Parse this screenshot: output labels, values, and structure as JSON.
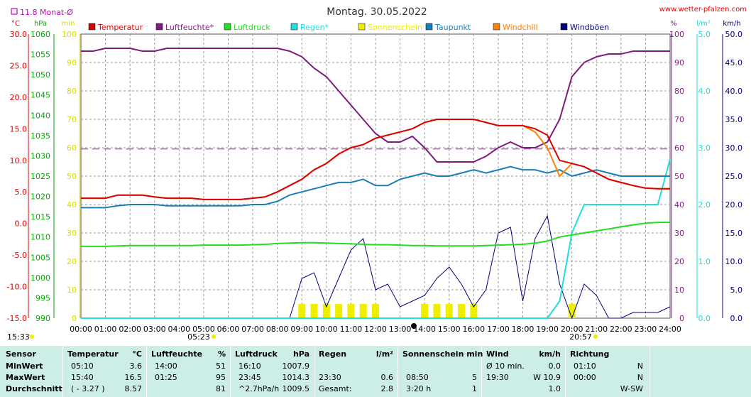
{
  "header": {
    "title": "Montag. 30.05.2022",
    "site": "www.wetter-pfalzen.com",
    "monat_label": "11.8 Monat-Ø",
    "sunrise_label": "05:23",
    "sunset_label": "20:57",
    "time_label": "15:33"
  },
  "colors": {
    "temperatur": "#dd0000",
    "luftfeuchte": "#7f1a7f",
    "luftdruck": "#22dd22",
    "regen": "#22dddd",
    "sonnenschein": "#eeee00",
    "taupunkt": "#1a7fb5",
    "windchill": "#ff7f00",
    "windboeen": "#00007f",
    "grid": "#999999",
    "stats_bg": "#cdeee6"
  },
  "chart_data": {
    "type": "line",
    "x": [
      "00:00",
      "00:30",
      "01:00",
      "01:30",
      "02:00",
      "02:30",
      "03:00",
      "03:30",
      "04:00",
      "04:30",
      "05:00",
      "05:30",
      "06:00",
      "06:30",
      "07:00",
      "07:30",
      "08:00",
      "08:30",
      "09:00",
      "09:30",
      "10:00",
      "10:30",
      "11:00",
      "11:30",
      "12:00",
      "12:30",
      "13:00",
      "13:30",
      "14:00",
      "14:30",
      "15:00",
      "15:30",
      "16:00",
      "16:30",
      "17:00",
      "17:30",
      "18:00",
      "18:30",
      "19:00",
      "19:30",
      "20:00",
      "20:30",
      "21:00",
      "21:30",
      "22:00",
      "22:30",
      "23:00",
      "23:30",
      "24:00"
    ],
    "x_ticks": [
      "00:00",
      "01:00",
      "02:00",
      "03:00",
      "04:00",
      "05:00",
      "06:00",
      "07:00",
      "08:00",
      "09:00",
      "10:00",
      "11:00",
      "12:00",
      "13:00",
      "14:00",
      "15:00",
      "16:00",
      "17:00",
      "18:00",
      "19:00",
      "20:00",
      "21:00",
      "22:00",
      "23:00",
      "24:00"
    ],
    "axes": {
      "temp": {
        "label": "°C",
        "range": [
          -15,
          30
        ],
        "ticks": [
          "30.0",
          "25.0",
          "20.0",
          "15.0",
          "10.0",
          "5.0",
          "0.0",
          "-5.0",
          "-10.0",
          "-15.0"
        ]
      },
      "pressure": {
        "label": "hPa",
        "range": [
          990,
          1060
        ],
        "ticks": [
          "1060",
          "1055",
          "1050",
          "1045",
          "1040",
          "1035",
          "1030",
          "1025",
          "1020",
          "1015",
          "1010",
          "1005",
          "1000",
          "995",
          "990"
        ]
      },
      "sun": {
        "label": "min",
        "range": [
          0,
          100
        ],
        "ticks": [
          "100",
          "90",
          "80",
          "70",
          "60",
          "50",
          "40",
          "30",
          "20",
          "10",
          "0"
        ]
      },
      "humidity": {
        "label": "%",
        "range": [
          0,
          100
        ],
        "ticks": [
          "100",
          "90",
          "80",
          "70",
          "60",
          "50",
          "40",
          "30",
          "20",
          "10",
          "0"
        ]
      },
      "rain": {
        "label": "l/m²",
        "range": [
          0,
          5
        ],
        "ticks": [
          "5.0",
          "4.0",
          "3.0",
          "2.0",
          "1.0",
          "0.0"
        ]
      },
      "wind": {
        "label": "km/h",
        "range": [
          0,
          50
        ],
        "ticks": [
          "50.0",
          "45.0",
          "40.0",
          "35.0",
          "30.0",
          "25.0",
          "20.0",
          "15.0",
          "10.0",
          "5.0",
          "0.0"
        ]
      }
    },
    "monthly_avg_temp": 11.8,
    "series": [
      {
        "name": "Temperatur",
        "axis": "temp",
        "values": [
          4.0,
          4.0,
          4.0,
          4.5,
          4.5,
          4.5,
          4.2,
          4.0,
          4.0,
          4.0,
          3.8,
          3.8,
          3.8,
          3.8,
          4.0,
          4.2,
          5.0,
          6.0,
          7.0,
          8.5,
          9.5,
          11.0,
          12.0,
          12.5,
          13.5,
          14.0,
          14.5,
          15.0,
          16.0,
          16.5,
          16.5,
          16.5,
          16.5,
          16.0,
          15.5,
          15.5,
          15.5,
          15.0,
          14.0,
          10.0,
          9.5,
          9.0,
          8.0,
          7.0,
          6.5,
          6.0,
          5.6,
          5.5,
          5.5
        ]
      },
      {
        "name": "Luftfeuchte*",
        "axis": "humidity",
        "values": [
          94,
          94,
          95,
          95,
          95,
          94,
          94,
          95,
          95,
          95,
          95,
          95,
          95,
          95,
          95,
          95,
          95,
          94,
          92,
          88,
          85,
          80,
          75,
          70,
          65,
          62,
          62,
          64,
          60,
          55,
          55,
          55,
          55,
          57,
          60,
          62,
          60,
          60,
          62,
          70,
          85,
          90,
          92,
          93,
          93,
          94,
          94,
          94,
          94
        ]
      },
      {
        "name": "Luftdruck",
        "axis": "pressure",
        "values": [
          1007.7,
          1007.7,
          1007.7,
          1007.8,
          1007.9,
          1007.9,
          1007.9,
          1007.9,
          1007.9,
          1007.9,
          1008.0,
          1008.0,
          1008.0,
          1008.0,
          1008.1,
          1008.2,
          1008.4,
          1008.5,
          1008.6,
          1008.6,
          1008.5,
          1008.4,
          1008.3,
          1008.2,
          1008.1,
          1008.1,
          1008.0,
          1007.9,
          1007.9,
          1007.8,
          1007.8,
          1007.8,
          1007.8,
          1007.9,
          1008.0,
          1008.1,
          1008.2,
          1008.5,
          1009.0,
          1010.0,
          1010.5,
          1011.0,
          1011.5,
          1012.0,
          1012.5,
          1013.0,
          1013.4,
          1013.6,
          1013.6
        ]
      },
      {
        "name": "Regen*",
        "axis": "rain",
        "values": [
          0,
          0,
          0,
          0,
          0,
          0,
          0,
          0,
          0,
          0,
          0,
          0,
          0,
          0,
          0,
          0,
          0,
          0,
          0,
          0,
          0,
          0,
          0,
          0,
          0,
          0,
          0,
          0,
          0,
          0,
          0,
          0,
          0,
          0,
          0,
          0,
          0,
          0,
          0,
          0.3,
          1.5,
          2.0,
          2.0,
          2.0,
          2.0,
          2.0,
          2.0,
          2.0,
          2.8
        ]
      },
      {
        "name": "Sonnenschein",
        "axis": "sun",
        "values": [
          0,
          0,
          0,
          0,
          0,
          0,
          0,
          0,
          0,
          0,
          0,
          0,
          0,
          0,
          0,
          0,
          0,
          0,
          5,
          5,
          5,
          5,
          5,
          5,
          5,
          0,
          0,
          0,
          5,
          5,
          5,
          5,
          5,
          0,
          0,
          0,
          0,
          0,
          0,
          0,
          5,
          0,
          0,
          0,
          0,
          0,
          0,
          0,
          0
        ]
      },
      {
        "name": "Taupunkt",
        "axis": "temp",
        "values": [
          2.5,
          2.5,
          2.5,
          2.8,
          3.0,
          3.0,
          3.0,
          2.8,
          2.8,
          2.8,
          2.8,
          2.8,
          2.8,
          2.8,
          3.0,
          3.0,
          3.5,
          4.5,
          5.0,
          5.5,
          6.0,
          6.5,
          6.5,
          7.0,
          6.0,
          6.0,
          7.0,
          7.5,
          8.0,
          7.5,
          7.5,
          8.0,
          8.5,
          8.0,
          8.5,
          9.0,
          8.5,
          8.5,
          8.0,
          8.5,
          7.5,
          8.0,
          8.5,
          8.0,
          7.5,
          7.5,
          7.5,
          7.5,
          7.5
        ]
      },
      {
        "name": "Windchill",
        "axis": "temp",
        "values": [
          4.0,
          4.0,
          4.0,
          4.5,
          4.5,
          4.5,
          4.2,
          4.0,
          4.0,
          4.0,
          3.8,
          3.8,
          3.8,
          3.8,
          4.0,
          4.2,
          5.0,
          6.0,
          7.0,
          8.5,
          9.5,
          11.0,
          12.0,
          12.5,
          13.5,
          14.0,
          14.5,
          15.0,
          16.0,
          16.5,
          16.5,
          16.5,
          16.5,
          16.0,
          15.5,
          15.5,
          15.5,
          14.5,
          12.0,
          7.5,
          9.5,
          9.0,
          8.0,
          7.0,
          6.5,
          6.0,
          5.6,
          5.5,
          5.5
        ]
      },
      {
        "name": "Windböen",
        "axis": "wind",
        "values": [
          0,
          0,
          0,
          0,
          0,
          0,
          0,
          0,
          0,
          0,
          0,
          0,
          0,
          0,
          0,
          0,
          0,
          0,
          7,
          8,
          2,
          7,
          12,
          14,
          5,
          6,
          2,
          3,
          4,
          7,
          9,
          6,
          2,
          5,
          15,
          16,
          3,
          14,
          18,
          6,
          0,
          6,
          4,
          0,
          0,
          1,
          1,
          1,
          2
        ]
      }
    ]
  },
  "stats": {
    "headers": {
      "sensor": "Sensor",
      "temp": "Temperatur",
      "temp_unit": "°C",
      "hum": "Luftfeuchte",
      "hum_unit": "%",
      "press": "Luftdruck",
      "press_unit": "hPa",
      "rain": "Regen",
      "rain_unit": "l/m²",
      "sun": "Sonnenschein min",
      "wind": "Wind",
      "wind_unit": "km/h",
      "dir": "Richtung"
    },
    "rows": [
      {
        "label": "MinWert",
        "temp_time": "05:10",
        "temp_val": "3.6",
        "hum_time": "14:00",
        "hum_val": "51",
        "press_time": "16:10",
        "press_val": "1007.9",
        "rain_time": "",
        "rain_val": "",
        "sun_time": "",
        "sun_val": "",
        "wind_time": "Ø 10 min.",
        "wind_val": "0.0",
        "dir_time": "01:10",
        "dir_val": "N"
      },
      {
        "label": "MaxWert",
        "temp_time": "15:40",
        "temp_val": "16.5",
        "hum_time": "01:25",
        "hum_val": "95",
        "press_time": "23:45",
        "press_val": "1014.3",
        "rain_time": "23:30",
        "rain_val": "0.6",
        "sun_time": "08:50",
        "sun_val": "5",
        "wind_time": "19:30",
        "wind_val": "W 10.9",
        "dir_time": "00:00",
        "dir_val": "N"
      },
      {
        "label": "Durchschnitt",
        "temp_time": "( - 3.27 )",
        "temp_val": "8.57",
        "hum_time": "",
        "hum_val": "81",
        "press_time": "^2.7hPa/h",
        "press_val": "1009.5",
        "rain_time": "Gesamt:",
        "rain_val": "2.8",
        "sun_time": "3:20 h",
        "sun_val": "1",
        "wind_time": "",
        "wind_val": "1.0",
        "dir_time": "",
        "dir_val": "W-SW"
      }
    ]
  }
}
